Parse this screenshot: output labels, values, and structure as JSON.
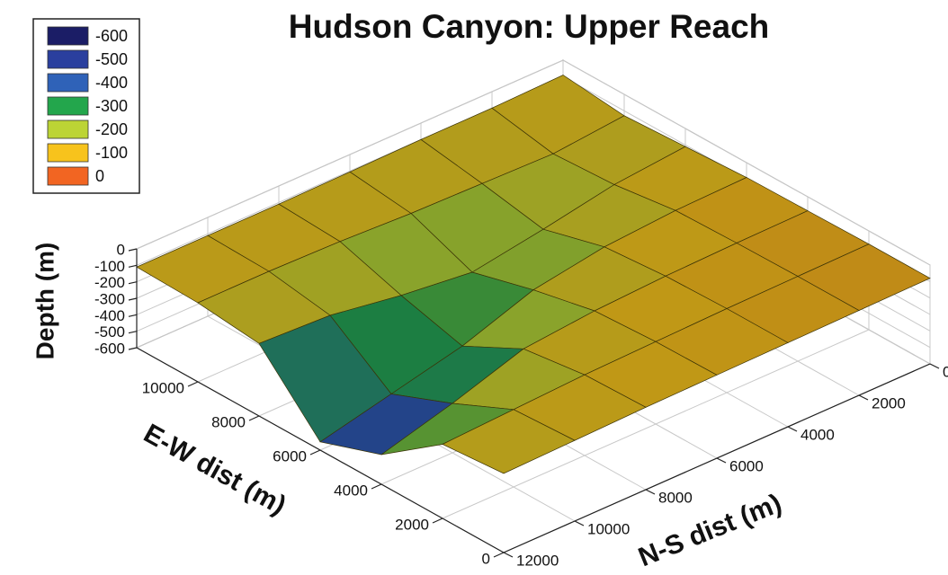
{
  "chart_data": {
    "type": "surface",
    "title": "Hudson Canyon: Upper Reach",
    "x_label": "E-W dist (m)",
    "y_label": "N-S dist (m)",
    "z_label": "Depth (m)",
    "xlim": [
      0,
      12000
    ],
    "ylim": [
      0,
      12000
    ],
    "zlim": [
      -600,
      0
    ],
    "xticks": [
      0,
      2000,
      4000,
      6000,
      8000,
      10000
    ],
    "yticks": [
      0,
      2000,
      4000,
      6000,
      8000,
      10000,
      12000
    ],
    "zticks": [
      0,
      -100,
      -200,
      -300,
      -400,
      -500,
      -600
    ],
    "legend": {
      "levels": [
        -600,
        -500,
        -400,
        -300,
        -200,
        -100,
        0
      ],
      "colors": [
        "#1b1d66",
        "#2a3f9e",
        "#2f62b8",
        "#23a64c",
        "#bcd435",
        "#f7c31c",
        "#f26522"
      ]
    },
    "x": [
      0,
      2000,
      4000,
      6000,
      8000,
      10000,
      12000
    ],
    "y": [
      0,
      2000,
      4000,
      6000,
      8000,
      10000,
      12000
    ],
    "z": [
      [
        -80,
        -80,
        -85,
        -90,
        -110,
        -130,
        -90
      ],
      [
        -85,
        -85,
        -90,
        -100,
        -150,
        -170,
        -100
      ],
      [
        -90,
        -90,
        -100,
        -130,
        -230,
        -160,
        -100
      ],
      [
        -95,
        -100,
        -120,
        -200,
        -300,
        -150,
        -105
      ],
      [
        -100,
        -110,
        -160,
        -350,
        -250,
        -130,
        -110
      ],
      [
        -110,
        -130,
        -300,
        -450,
        -180,
        -120,
        -110
      ],
      [
        -120,
        -150,
        -420,
        -550,
        -160,
        -120,
        -110
      ]
    ]
  }
}
